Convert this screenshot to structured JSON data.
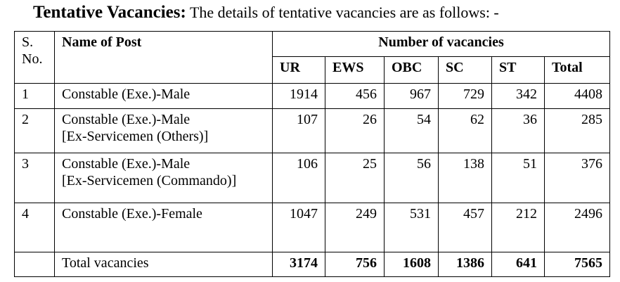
{
  "title": {
    "label": "Tentative Vacancies:",
    "text": "The details of tentative vacancies are as follows: -"
  },
  "table": {
    "header": {
      "sno": "S. No.",
      "name": "Name of Post",
      "group": "Number of vacancies",
      "columns": [
        "UR",
        "EWS",
        "OBC",
        "SC",
        "ST",
        "Total"
      ]
    },
    "rows": [
      {
        "sno": "1",
        "name": [
          "Constable (Exe.)-Male"
        ],
        "values": [
          1914,
          456,
          967,
          729,
          342,
          4408
        ]
      },
      {
        "sno": "2",
        "name": [
          "Constable (Exe.)-Male",
          "[Ex-Servicemen (Others)]"
        ],
        "values": [
          107,
          26,
          54,
          62,
          36,
          285
        ]
      },
      {
        "sno": "3",
        "name": [
          "Constable (Exe.)-Male",
          "[Ex-Servicemen (Commando)]"
        ],
        "values": [
          106,
          25,
          56,
          138,
          51,
          376
        ]
      },
      {
        "sno": "4",
        "name": [
          "Constable (Exe.)-Female"
        ],
        "values": [
          1047,
          249,
          531,
          457,
          212,
          2496
        ]
      }
    ],
    "total": {
      "label": "Total vacancies",
      "values": [
        3174,
        756,
        1608,
        1386,
        641,
        7565
      ]
    }
  }
}
